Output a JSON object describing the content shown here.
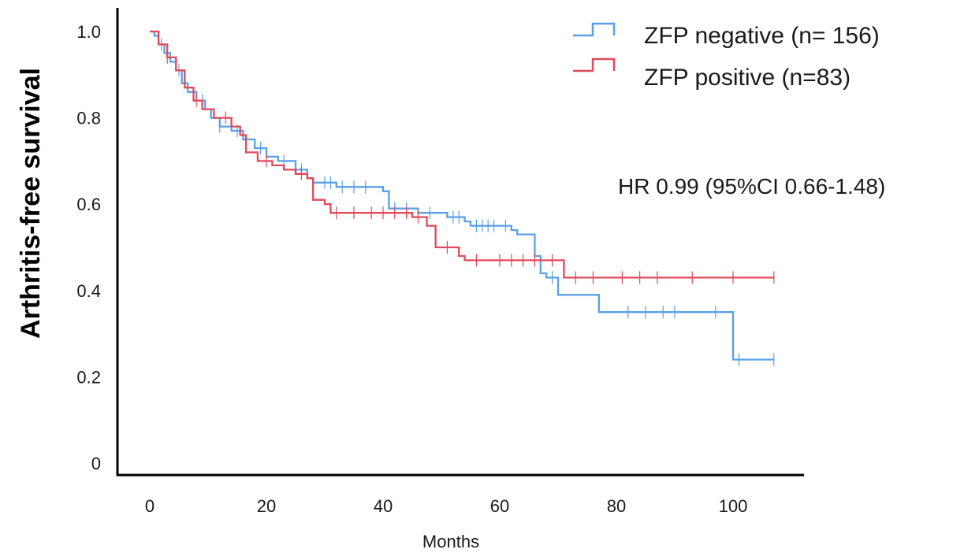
{
  "chart_data": {
    "type": "line",
    "subtype": "kaplan-meier",
    "title": "",
    "xlabel": "Months",
    "ylabel": "Arthritis-free survival",
    "xlim": [
      -5,
      108
    ],
    "ylim": [
      0,
      1.05
    ],
    "x_ticks": [
      0,
      20,
      40,
      60,
      80,
      100
    ],
    "x_tick_labels": [
      "0",
      "20",
      "40",
      "60",
      "80",
      "100"
    ],
    "y_ticks": [
      0,
      0.2,
      0.4,
      0.6,
      0.8,
      1.0
    ],
    "y_tick_labels": [
      "0",
      "0.2",
      "0.4",
      "0.6",
      "0.8",
      "1.0"
    ],
    "grid": false,
    "legend_position": "top-right",
    "annotation": "HR 0.99 (95%CI 0.66-1.48)",
    "series": [
      {
        "name": "ZFP negative (n= 156)",
        "color": "#5aa0e6",
        "steps": [
          [
            0,
            1.0
          ],
          [
            0.8,
            0.99
          ],
          [
            1.5,
            0.97
          ],
          [
            2.5,
            0.95
          ],
          [
            3.5,
            0.93
          ],
          [
            4.5,
            0.91
          ],
          [
            5.5,
            0.88
          ],
          [
            6.5,
            0.86
          ],
          [
            8,
            0.84
          ],
          [
            9.5,
            0.82
          ],
          [
            10.5,
            0.8
          ],
          [
            12,
            0.78
          ],
          [
            14,
            0.77
          ],
          [
            16,
            0.75
          ],
          [
            18,
            0.73
          ],
          [
            20,
            0.71
          ],
          [
            22,
            0.7
          ],
          [
            25,
            0.68
          ],
          [
            27,
            0.66
          ],
          [
            28,
            0.65
          ],
          [
            32,
            0.64
          ],
          [
            40,
            0.63
          ],
          [
            41,
            0.59
          ],
          [
            46,
            0.58
          ],
          [
            51,
            0.57
          ],
          [
            54,
            0.56
          ],
          [
            55,
            0.55
          ],
          [
            62,
            0.54
          ],
          [
            63,
            0.53
          ],
          [
            66,
            0.48
          ],
          [
            67,
            0.44
          ],
          [
            68,
            0.43
          ],
          [
            70,
            0.39
          ],
          [
            76,
            0.39
          ],
          [
            77,
            0.35
          ],
          [
            100,
            0.24
          ],
          [
            107,
            0.24
          ]
        ],
        "censored": [
          2,
          5,
          9,
          12,
          15,
          19,
          23,
          26,
          30,
          31,
          33,
          35,
          37,
          42,
          44,
          48,
          52,
          53,
          56,
          57,
          58,
          59,
          61,
          69,
          82,
          85,
          88,
          90,
          97,
          101,
          107
        ]
      },
      {
        "name": "ZFP positive (n=83)",
        "color": "#e04a5a",
        "steps": [
          [
            0,
            1.0
          ],
          [
            1.5,
            0.97
          ],
          [
            3,
            0.94
          ],
          [
            4.5,
            0.91
          ],
          [
            6,
            0.87
          ],
          [
            7.5,
            0.84
          ],
          [
            9,
            0.82
          ],
          [
            11,
            0.8
          ],
          [
            14,
            0.78
          ],
          [
            15.5,
            0.76
          ],
          [
            16.5,
            0.72
          ],
          [
            18.5,
            0.7
          ],
          [
            21,
            0.69
          ],
          [
            23,
            0.68
          ],
          [
            25,
            0.67
          ],
          [
            27,
            0.66
          ],
          [
            28,
            0.61
          ],
          [
            30,
            0.6
          ],
          [
            31,
            0.58
          ],
          [
            45,
            0.57
          ],
          [
            47.5,
            0.55
          ],
          [
            49,
            0.5
          ],
          [
            53,
            0.48
          ],
          [
            54,
            0.47
          ],
          [
            65,
            0.47
          ],
          [
            66.5,
            0.47
          ],
          [
            71,
            0.43
          ],
          [
            107,
            0.43
          ]
        ],
        "censored": [
          3,
          8,
          13,
          20,
          26,
          32,
          35,
          38,
          40,
          42,
          44,
          46,
          51,
          56,
          60,
          62,
          64,
          66,
          69,
          73,
          76,
          81,
          84,
          87,
          93,
          100,
          107
        ]
      }
    ]
  }
}
